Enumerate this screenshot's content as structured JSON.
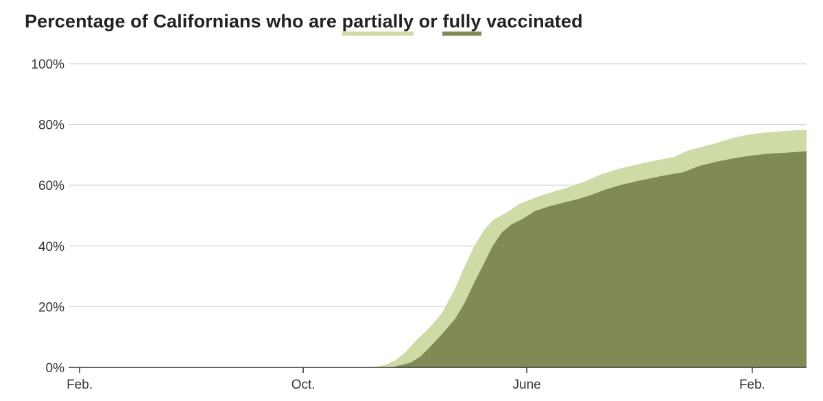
{
  "title": {
    "prefix": "Percentage of Californians who are ",
    "partial_word": "partially",
    "middle": " or ",
    "full_word": "fully",
    "suffix": " vaccinated"
  },
  "colors": {
    "partially": "#cfdba7",
    "fully": "#7f8a54",
    "grid": "#d6d6d6",
    "axis": "#333333"
  },
  "chart_data": {
    "type": "area",
    "title": "Percentage of Californians who are partially or fully vaccinated",
    "xlabel": "",
    "ylabel": "",
    "ylim": [
      0,
      100
    ],
    "y_ticks": [
      0,
      20,
      40,
      60,
      80,
      100
    ],
    "y_tick_labels": [
      "0%",
      "20%",
      "40%",
      "60%",
      "80%",
      "100%"
    ],
    "xlim": [
      "2020-01-20",
      "2022-04-01"
    ],
    "x_ticks": [
      {
        "date": "2020-02-01",
        "label": "Feb."
      },
      {
        "date": "2020-10-01",
        "label": "Oct."
      },
      {
        "date": "2021-06-01",
        "label": "June"
      },
      {
        "date": "2022-02-01",
        "label": "Feb."
      }
    ],
    "grid": true,
    "legend": "inline-title",
    "series": [
      {
        "name": "partially",
        "color": "#cfdba7",
        "points": [
          [
            "2020-01-20",
            0
          ],
          [
            "2020-12-15",
            0
          ],
          [
            "2020-12-25",
            0.5
          ],
          [
            "2021-01-01",
            1.2
          ],
          [
            "2021-01-10",
            2.5
          ],
          [
            "2021-01-20",
            5
          ],
          [
            "2021-02-01",
            9
          ],
          [
            "2021-02-15",
            13
          ],
          [
            "2021-03-01",
            18
          ],
          [
            "2021-03-15",
            26
          ],
          [
            "2021-03-25",
            33
          ],
          [
            "2021-04-05",
            40
          ],
          [
            "2021-04-15",
            45
          ],
          [
            "2021-04-25",
            48.5
          ],
          [
            "2021-05-10",
            51
          ],
          [
            "2021-05-25",
            54
          ],
          [
            "2021-06-15",
            56.5
          ],
          [
            "2021-07-01",
            58
          ],
          [
            "2021-07-15",
            59.2
          ],
          [
            "2021-08-01",
            61
          ],
          [
            "2021-08-20",
            63.5
          ],
          [
            "2021-09-10",
            65.5
          ],
          [
            "2021-10-01",
            67
          ],
          [
            "2021-10-20",
            68.2
          ],
          [
            "2021-11-08",
            69.3
          ],
          [
            "2021-11-22",
            71.3
          ],
          [
            "2021-12-10",
            72.8
          ],
          [
            "2021-12-25",
            74
          ],
          [
            "2022-01-10",
            75.5
          ],
          [
            "2022-01-25",
            76.5
          ],
          [
            "2022-02-10",
            77.2
          ],
          [
            "2022-03-01",
            77.7
          ],
          [
            "2022-04-01",
            78.3
          ]
        ]
      },
      {
        "name": "fully",
        "color": "#7f8a54",
        "points": [
          [
            "2020-01-20",
            0
          ],
          [
            "2021-01-05",
            0
          ],
          [
            "2021-01-15",
            0.8
          ],
          [
            "2021-01-25",
            1.5
          ],
          [
            "2021-02-05",
            3.5
          ],
          [
            "2021-02-15",
            6.5
          ],
          [
            "2021-03-01",
            11
          ],
          [
            "2021-03-15",
            16
          ],
          [
            "2021-03-25",
            21
          ],
          [
            "2021-04-05",
            28
          ],
          [
            "2021-04-15",
            34
          ],
          [
            "2021-04-25",
            40
          ],
          [
            "2021-05-05",
            44.5
          ],
          [
            "2021-05-15",
            47
          ],
          [
            "2021-05-28",
            49
          ],
          [
            "2021-06-10",
            51.5
          ],
          [
            "2021-06-25",
            53
          ],
          [
            "2021-07-10",
            54.2
          ],
          [
            "2021-07-25",
            55.3
          ],
          [
            "2021-08-10",
            56.8
          ],
          [
            "2021-08-25",
            58.5
          ],
          [
            "2021-09-10",
            60
          ],
          [
            "2021-10-01",
            61.5
          ],
          [
            "2021-10-25",
            63
          ],
          [
            "2021-11-18",
            64.3
          ],
          [
            "2021-12-05",
            66.3
          ],
          [
            "2021-12-25",
            67.8
          ],
          [
            "2022-01-15",
            69
          ],
          [
            "2022-02-01",
            69.8
          ],
          [
            "2022-02-20",
            70.4
          ],
          [
            "2022-03-10",
            70.7
          ],
          [
            "2022-04-01",
            71.2
          ]
        ]
      }
    ]
  }
}
